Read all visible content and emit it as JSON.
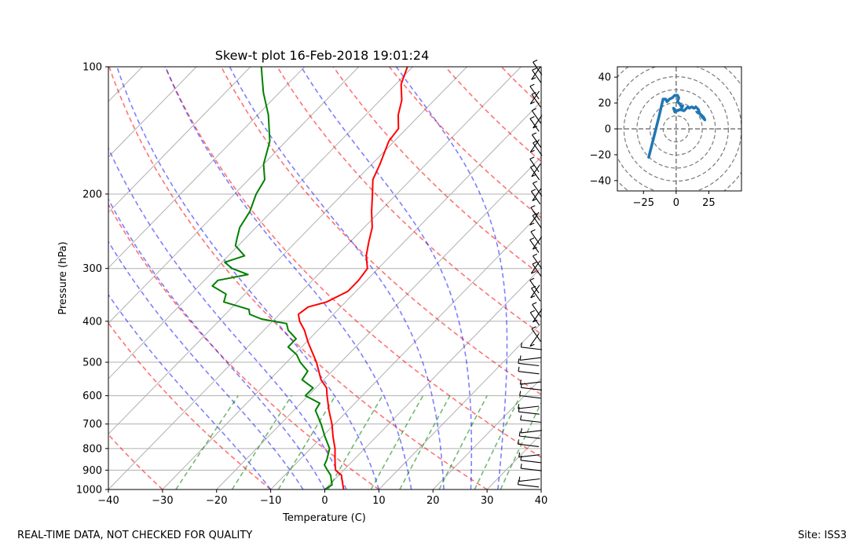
{
  "chart_data": [
    {
      "type": "skew-t",
      "title": "Skew-t plot 16-Feb-2018 19:01:24",
      "xlabel": "Temperature (C)",
      "ylabel": "Pressure (hPa)",
      "xlim": [
        -40,
        40
      ],
      "ylim": [
        1000,
        100
      ],
      "grid": true,
      "x_ticks": [
        -40,
        -30,
        -20,
        -10,
        0,
        10,
        20,
        30,
        40
      ],
      "x_tick_labels": [
        "−40",
        "−30",
        "−20",
        "−10",
        "0",
        "10",
        "20",
        "30",
        "40"
      ],
      "y_ticks": [
        100,
        200,
        300,
        400,
        500,
        600,
        700,
        800,
        900,
        1000
      ],
      "y_tick_labels": [
        "100",
        "200",
        "300",
        "400",
        "500",
        "600",
        "700",
        "800",
        "900",
        "1000"
      ],
      "series": [
        {
          "name": "temperature",
          "color": "#ff0000",
          "points": [
            [
              1000,
              3.5
            ],
            [
              975,
              2.5
            ],
            [
              950,
              1.5
            ],
            [
              925,
              0.5
            ],
            [
              900,
              -1.5
            ],
            [
              875,
              -2.5
            ],
            [
              850,
              -3.5
            ],
            [
              800,
              -5.5
            ],
            [
              750,
              -8.0
            ],
            [
              700,
              -10.5
            ],
            [
              650,
              -13.5
            ],
            [
              600,
              -16.5
            ],
            [
              575,
              -18.0
            ],
            [
              550,
              -20.5
            ],
            [
              500,
              -24.5
            ],
            [
              450,
              -29.5
            ],
            [
              420,
              -32.5
            ],
            [
              400,
              -35.0
            ],
            [
              385,
              -36.5
            ],
            [
              370,
              -36.0
            ],
            [
              360,
              -33.5
            ],
            [
              340,
              -31.5
            ],
            [
              320,
              -31.5
            ],
            [
              300,
              -32.0
            ],
            [
              280,
              -34.5
            ],
            [
              260,
              -36.5
            ],
            [
              240,
              -38.5
            ],
            [
              220,
              -41.5
            ],
            [
              200,
              -44.5
            ],
            [
              185,
              -47.0
            ],
            [
              170,
              -48.5
            ],
            [
              150,
              -51.0
            ],
            [
              140,
              -51.5
            ],
            [
              130,
              -54.0
            ],
            [
              120,
              -56.0
            ],
            [
              110,
              -59.0
            ],
            [
              100,
              -61.0
            ]
          ]
        },
        {
          "name": "dewpoint",
          "color": "#008000",
          "points": [
            [
              1000,
              0.0
            ],
            [
              975,
              0.5
            ],
            [
              950,
              -0.5
            ],
            [
              925,
              -1.5
            ],
            [
              900,
              -3.0
            ],
            [
              875,
              -4.5
            ],
            [
              850,
              -5.0
            ],
            [
              800,
              -6.5
            ],
            [
              750,
              -9.5
            ],
            [
              700,
              -12.5
            ],
            [
              650,
              -16.0
            ],
            [
              625,
              -16.5
            ],
            [
              600,
              -20.5
            ],
            [
              575,
              -20.5
            ],
            [
              550,
              -24.0
            ],
            [
              525,
              -24.5
            ],
            [
              500,
              -27.5
            ],
            [
              480,
              -29.5
            ],
            [
              460,
              -32.5
            ],
            [
              440,
              -32.5
            ],
            [
              420,
              -35.5
            ],
            [
              405,
              -37.0
            ],
            [
              395,
              -42.5
            ],
            [
              385,
              -45.5
            ],
            [
              375,
              -46.5
            ],
            [
              360,
              -52.5
            ],
            [
              345,
              -53.5
            ],
            [
              330,
              -57.5
            ],
            [
              320,
              -57.5
            ],
            [
              310,
              -53.0
            ],
            [
              300,
              -57.0
            ],
            [
              290,
              -59.5
            ],
            [
              280,
              -57.0
            ],
            [
              265,
              -60.5
            ],
            [
              255,
              -61.5
            ],
            [
              240,
              -63.0
            ],
            [
              220,
              -64.0
            ],
            [
              200,
              -66.0
            ],
            [
              185,
              -67.0
            ],
            [
              170,
              -70.0
            ],
            [
              150,
              -73.0
            ],
            [
              130,
              -78.0
            ],
            [
              115,
              -83.0
            ],
            [
              100,
              -88.0
            ]
          ]
        }
      ]
    },
    {
      "type": "hodograph",
      "x_ticks": [
        -25,
        0,
        25
      ],
      "x_tick_labels": [
        "−25",
        "0",
        "25"
      ],
      "y_ticks": [
        -40,
        -20,
        0,
        20,
        40
      ],
      "y_tick_labels": [
        "−40",
        "−20",
        "0",
        "20",
        "40"
      ],
      "xlim": [
        -45,
        50
      ],
      "ylim": [
        -48,
        48
      ],
      "rings": [
        10,
        20,
        30,
        40,
        50,
        60
      ],
      "line_color": "#1f77b4",
      "points": [
        [
          -21,
          -22
        ],
        [
          -17,
          -6
        ],
        [
          -13,
          10
        ],
        [
          -10,
          23
        ],
        [
          -8,
          23
        ],
        [
          -7,
          21
        ],
        [
          -5,
          23
        ],
        [
          -3,
          24
        ],
        [
          -1,
          26
        ],
        [
          1,
          26
        ],
        [
          2,
          24
        ],
        [
          1,
          21
        ],
        [
          3,
          19
        ],
        [
          4,
          17
        ],
        [
          5,
          18
        ],
        [
          4,
          15
        ],
        [
          0,
          14
        ],
        [
          -2,
          16
        ],
        [
          -1,
          13
        ],
        [
          3,
          15
        ],
        [
          6,
          14
        ],
        [
          8,
          16
        ],
        [
          9,
          17
        ],
        [
          10,
          16
        ],
        [
          12,
          17
        ],
        [
          14,
          16
        ],
        [
          15,
          17
        ],
        [
          16,
          16
        ],
        [
          17,
          15
        ],
        [
          18,
          12
        ],
        [
          20,
          9
        ],
        [
          22,
          7
        ],
        [
          21,
          9
        ],
        [
          19,
          11
        ],
        [
          16,
          13
        ]
      ]
    }
  ],
  "footer": {
    "left": "REAL-TIME DATA, NOT CHECKED FOR QUALITY",
    "right": "Site: ISS3"
  }
}
